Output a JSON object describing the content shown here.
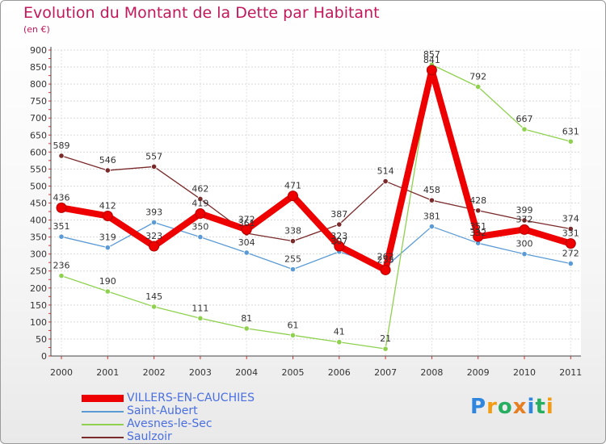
{
  "chart_data": {
    "type": "line",
    "title": "Evolution du Montant de la Dette par Habitant",
    "subtitle": "(en €)",
    "xlabel": "",
    "ylabel": "",
    "ylim": [
      0,
      900
    ],
    "yticks": [
      0,
      50,
      100,
      150,
      200,
      250,
      300,
      350,
      400,
      450,
      500,
      550,
      600,
      650,
      700,
      750,
      800,
      850,
      900
    ],
    "categories": [
      "2000",
      "2001",
      "2002",
      "2003",
      "2004",
      "2005",
      "2006",
      "2007",
      "2008",
      "2009",
      "2010",
      "2011"
    ],
    "grid": true,
    "legend_position": "bottom-left",
    "series": [
      {
        "name": "VILLERS-EN-CAUCHIES",
        "color": "#ee0000",
        "values": [
          436,
          412,
          323,
          419,
          372,
          471,
          323,
          253,
          841,
          351,
          372,
          331
        ],
        "labels": [
          "436",
          "412",
          "323",
          "419",
          "372",
          "471",
          "323",
          "253",
          "841",
          "351",
          "372",
          "331"
        ],
        "thick": true
      },
      {
        "name": "Saint-Aubert",
        "color": "#5b9bd5",
        "values": [
          351,
          319,
          393,
          350,
          304,
          255,
          307,
          262,
          381,
          332,
          300,
          272
        ],
        "labels": [
          "351",
          "319",
          "393",
          "350",
          "304",
          "255",
          "307",
          "262",
          "381",
          "332",
          "300",
          "272"
        ],
        "thick": false
      },
      {
        "name": "Avesnes-le-Sec",
        "color": "#8fd14f",
        "values": [
          236,
          190,
          145,
          111,
          81,
          61,
          41,
          21,
          857,
          792,
          667,
          631
        ],
        "labels": [
          "236",
          "190",
          "145",
          "111",
          "81",
          "61",
          "41",
          "21",
          "857",
          "792",
          "667",
          "631"
        ],
        "thick": false
      },
      {
        "name": "Saulzoir",
        "color": "#7a2a2a",
        "values": [
          589,
          546,
          557,
          462,
          361,
          338,
          387,
          514,
          458,
          428,
          399,
          374
        ],
        "labels": [
          "589",
          "546",
          "557",
          "462",
          "361",
          "338",
          "387",
          "514",
          "458",
          "428",
          "399",
          "374"
        ],
        "thick": false
      }
    ]
  },
  "logo": {
    "letters": [
      "P",
      "r",
      "o",
      "x",
      "i",
      "t",
      "i"
    ],
    "colors": [
      "#2e86de",
      "#f39c12",
      "#27ae60",
      "#e67e22",
      "#2e86de",
      "#27ae60",
      "#f39c12"
    ]
  }
}
